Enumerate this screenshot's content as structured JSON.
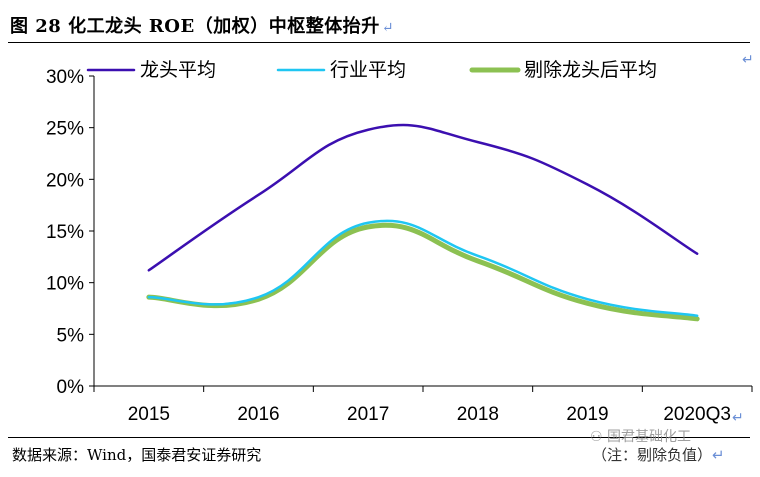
{
  "header": {
    "title": "图 28 化工龙头 ROE（加权）中枢整体抬升",
    "return_mark": "↵"
  },
  "footer": {
    "source": "数据来源：Wind，国泰君安证券研究",
    "note": "（注：剔除负值）",
    "watermark": "国君基础化工"
  },
  "colors": {
    "leader": "#3b0fb0",
    "industry": "#1fc6f2",
    "excl": "#8cc152"
  },
  "chart_data": {
    "type": "line",
    "title": "",
    "xlabel": "",
    "ylabel": "",
    "categories": [
      "2015",
      "2016",
      "2017",
      "2018",
      "2019",
      "2020Q3"
    ],
    "ylim": [
      0,
      30
    ],
    "yticks": [
      0,
      5,
      10,
      15,
      20,
      25,
      30
    ],
    "ytick_labels": [
      "0%",
      "5%",
      "10%",
      "15%",
      "20%",
      "25%",
      "30%"
    ],
    "grid": false,
    "legend_position": "top",
    "series": [
      {
        "name": "龙头平均",
        "values": [
          11.2,
          18.5,
          24.8,
          23.6,
          19.5,
          12.8
        ],
        "color": "#3b0fb0"
      },
      {
        "name": "行业平均",
        "values": [
          8.6,
          8.6,
          15.8,
          12.6,
          8.4,
          6.8
        ],
        "color": "#1fc6f2"
      },
      {
        "name": "剔除龙头后平均",
        "values": [
          8.6,
          8.4,
          15.4,
          12.1,
          8.0,
          6.5
        ],
        "color": "#8cc152"
      }
    ]
  }
}
